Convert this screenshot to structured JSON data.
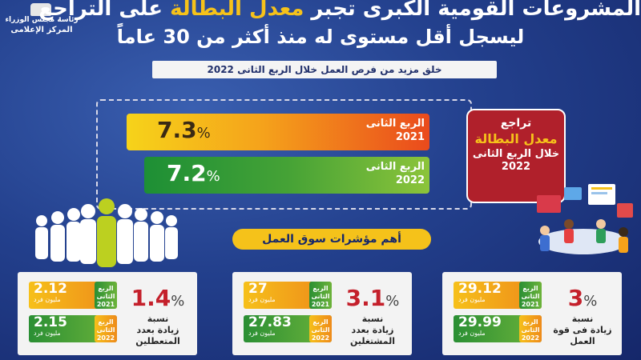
{
  "header": {
    "logo_line1": "رئاسة مجلس الوزراء",
    "logo_line2": "المركز الإعلامى",
    "title_part1": "المشروعات القومية الكبرى تجبر ",
    "title_highlight": "معدل البطالة",
    "title_part2": " على التراجع",
    "title_line2": "ليسجل أقل مستوى له منذ أكثر من 30 عاماً",
    "subtitle": "خلق مزيد من فرص العمل خلال الربع الثانى 2022"
  },
  "comparison": {
    "bar1": {
      "value": "7.3",
      "pct": "%",
      "label_line1": "الربع الثانى",
      "label_line2": "2021"
    },
    "bar2": {
      "value": "7.2",
      "pct": "%",
      "label_line1": "الربع الثانى",
      "label_line2": "2022"
    }
  },
  "red_card": {
    "line1": "تراجع",
    "line2": "معدل البطالة",
    "line3": "خلال الربع الثانى",
    "line4": "2022"
  },
  "section_title": "أهم مؤشرات سوق العمل",
  "panels": [
    {
      "pct": "1.4",
      "pct_sign": "%",
      "desc1": "نسبة",
      "desc2": "زيادة بعدد",
      "desc3": "المتعطلين",
      "top": {
        "value": "2.12",
        "unit": "مليون فرد",
        "q": "الربع الثانى",
        "year": "2021"
      },
      "bottom": {
        "value": "2.15",
        "unit": "مليون فرد",
        "q": "الربع الثانى",
        "year": "2022"
      }
    },
    {
      "pct": "3.1",
      "pct_sign": "%",
      "desc1": "نسبة",
      "desc2": "زيادة بعدد",
      "desc3": "المشتغلين",
      "top": {
        "value": "27",
        "unit": "مليون فرد",
        "q": "الربع الثانى",
        "year": "2021"
      },
      "bottom": {
        "value": "27.83",
        "unit": "مليون فرد",
        "q": "الربع الثانى",
        "year": "2022"
      }
    },
    {
      "pct": "3",
      "pct_sign": "%",
      "desc1": "نسبة",
      "desc2": "زيادة فى قوة",
      "desc3": "العمل",
      "top": {
        "value": "29.12",
        "unit": "مليون فرد",
        "q": "الربع الثانى",
        "year": "2021"
      },
      "bottom": {
        "value": "29.99",
        "unit": "مليون فرد",
        "q": "الربع الثانى",
        "year": "2022"
      }
    }
  ],
  "colors": {
    "background": "#23408d",
    "accent_yellow": "#f6c21a",
    "accent_red": "#b0202b",
    "green": "#3f9e36",
    "orange": "#f5a21b"
  },
  "icons": {
    "logo": "eagle-emblem-icon",
    "people": "crowd-icon",
    "office": "team-meeting-icon"
  }
}
